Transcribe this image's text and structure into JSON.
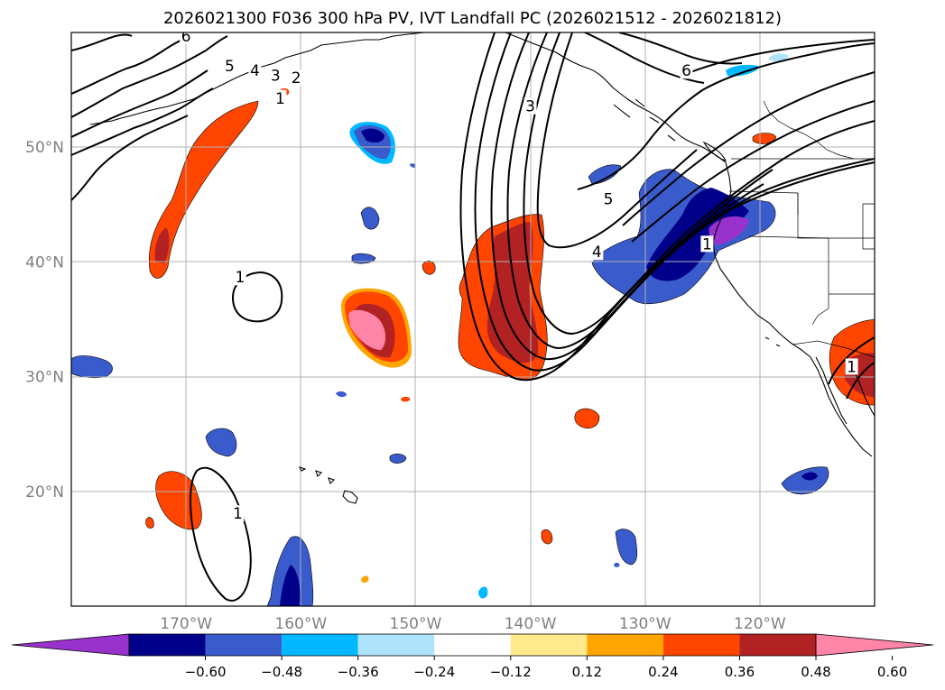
{
  "title": "2026021300 F036 300 hPa PV, IVT Landfall PC (2026021512 - 2026021812)",
  "map": {
    "lon_range": [
      -180,
      -110
    ],
    "lat_range": [
      10,
      60
    ],
    "lat_ticks": [
      {
        "value": 20,
        "label": "20°N"
      },
      {
        "value": 30,
        "label": "30°N"
      },
      {
        "value": 40,
        "label": "40°N"
      },
      {
        "value": 50,
        "label": "50°N"
      }
    ],
    "lon_ticks": [
      {
        "value": -170,
        "label": "170°W"
      },
      {
        "value": -160,
        "label": "160°W"
      },
      {
        "value": -150,
        "label": "150°W"
      },
      {
        "value": -140,
        "label": "140°W"
      },
      {
        "value": -130,
        "label": "130°W"
      },
      {
        "value": -120,
        "label": "120°W"
      }
    ],
    "contour_labels": [
      {
        "text": "6",
        "lon": -170.0,
        "lat": 59.6
      },
      {
        "text": "5",
        "lon": -166.2,
        "lat": 57.0
      },
      {
        "text": "4",
        "lon": -164.0,
        "lat": 56.6
      },
      {
        "text": "3",
        "lon": -162.2,
        "lat": 56.2
      },
      {
        "text": "2",
        "lon": -160.4,
        "lat": 56.0
      },
      {
        "text": "1",
        "lon": -161.8,
        "lat": 54.2
      },
      {
        "text": "1",
        "lon": -165.3,
        "lat": 38.6
      },
      {
        "text": "1",
        "lon": -165.5,
        "lat": 18.0
      },
      {
        "text": "3",
        "lon": -140.0,
        "lat": 53.5
      },
      {
        "text": "5",
        "lon": -133.2,
        "lat": 45.4
      },
      {
        "text": "4",
        "lon": -134.2,
        "lat": 40.8
      },
      {
        "text": "1",
        "lon": -124.6,
        "lat": 41.5
      },
      {
        "text": "6",
        "lon": -126.4,
        "lat": 56.6
      },
      {
        "text": "1",
        "lon": -112.0,
        "lat": 30.8
      }
    ]
  },
  "colorbar": {
    "ticks": [
      "−0.60",
      "−0.48",
      "−0.36",
      "−0.24",
      "−0.12",
      "0.12",
      "0.24",
      "0.36",
      "0.48",
      "0.60"
    ],
    "colors": [
      "#9932cc",
      "#00008b",
      "#3a5bcc",
      "#00b8ff",
      "#aee4fb",
      "#ffffff",
      "#ffe98a",
      "#ffa500",
      "#ff4500",
      "#b22222",
      "#ff85a8"
    ]
  }
}
